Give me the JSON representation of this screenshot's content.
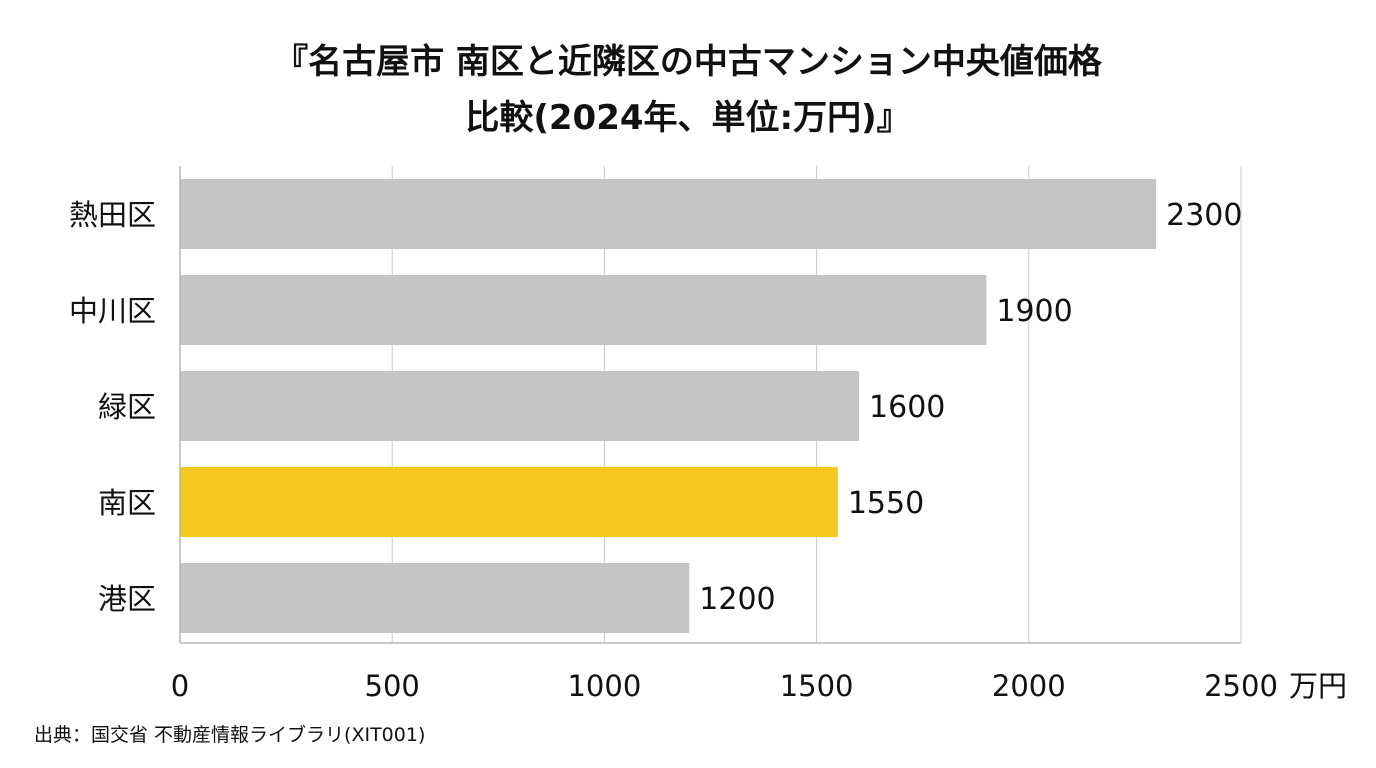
{
  "title_lines": [
    "『名古屋市 南区と近隣区の中古マンション中央値価格",
    "比較(2024年、単位:万円)』"
  ],
  "source": "出典：国交省 不動産情報ライブラリ(XIT001)",
  "colors": {
    "bar_default": "#c4c4c4",
    "bar_highlight": "#f5c81d",
    "grid": "#c9c9c9",
    "axis": "#b5b5b5"
  },
  "chart_data": {
    "type": "bar",
    "orientation": "horizontal",
    "title": "『名古屋市 南区と近隣区の中古マンション中央値価格 比較(2024年、単位:万円)』",
    "categories": [
      "熱田区",
      "中川区",
      "緑区",
      "南区",
      "港区"
    ],
    "values": [
      2300,
      1900,
      1600,
      1550,
      1200
    ],
    "value_labels": [
      "2300",
      "1900",
      "1600",
      "1550",
      "1200"
    ],
    "highlight_category": "南区",
    "x_unit": "万円",
    "xlim": [
      0,
      2500
    ],
    "xticks": [
      0,
      500,
      1000,
      1500,
      2000,
      2500
    ],
    "xtick_labels": [
      "0",
      "500",
      "1000",
      "1500",
      "2000",
      "2500"
    ],
    "grid": true,
    "legend": "none"
  }
}
